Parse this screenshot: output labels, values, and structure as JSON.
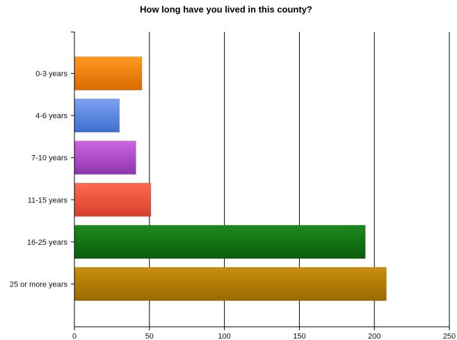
{
  "chart_data": {
    "type": "bar",
    "orientation": "horizontal",
    "title": "How long have you lived in this county?",
    "xlabel": "",
    "ylabel": "",
    "categories": [
      "0-3 years",
      "4-6 years",
      "7-10 years",
      "11-15 years",
      "16-25 years",
      "25 or more years"
    ],
    "values": [
      45,
      30,
      41,
      51,
      194,
      208
    ],
    "xlim": [
      0,
      250
    ],
    "xticks": [
      0,
      50,
      100,
      150,
      200,
      250
    ],
    "grid": true,
    "legend": "none",
    "colors": [
      {
        "top": "#ff9a1e",
        "bottom": "#d96a00"
      },
      {
        "top": "#7aa2f0",
        "bottom": "#3f6fd0"
      },
      {
        "top": "#cc66e0",
        "bottom": "#8e35ad"
      },
      {
        "top": "#ff6a52",
        "bottom": "#d8402c"
      },
      {
        "top": "#1e8a1e",
        "bottom": "#0a5c0a"
      },
      {
        "top": "#c8900e",
        "bottom": "#9a6800"
      }
    ]
  }
}
